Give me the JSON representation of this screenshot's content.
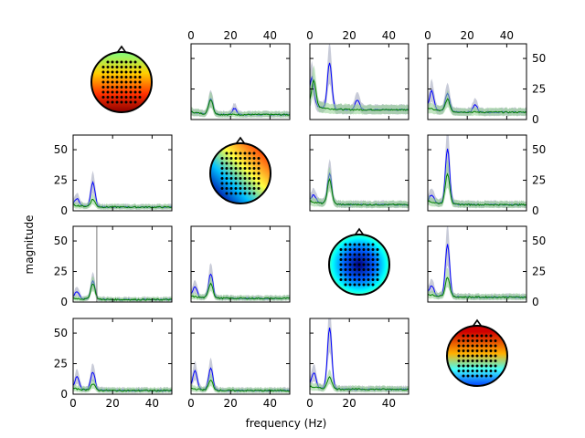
{
  "figure": {
    "xlabel": "frequency (Hz)",
    "ylabel": "magnitude"
  },
  "colors": {
    "series_a": "#0000ff",
    "series_b": "#008000",
    "band_a": "#9aa0b8",
    "band_b": "#8fd08f"
  },
  "chart_data": {
    "type": "line",
    "layout": "4x4 grid; diagonal cells show scalp topography maps with electrode dots; off-diagonal cells show spectral magnitude curves with shaded bands",
    "x_ticks": [
      0,
      20,
      40
    ],
    "x_ticks_top_row": [
      0,
      20,
      40
    ],
    "y_ticks_left": [
      0,
      25,
      50
    ],
    "y_ticks_right": [
      0,
      25,
      50
    ],
    "xlim": [
      0,
      50
    ],
    "ylim_left": [
      0,
      62
    ],
    "ylim_right": [
      0,
      62
    ],
    "topography_maps": [
      "row1",
      "row2",
      "row3",
      "row4"
    ],
    "series_names": [
      "",
      ""
    ],
    "panels": [
      {
        "row": 0,
        "col": 1,
        "peaks": [
          {
            "f": 10,
            "a": 13
          },
          {
            "f": 22,
            "a": 5
          }
        ],
        "base": 4,
        "extra": [
          {
            "f": 10,
            "a": 12
          }
        ]
      },
      {
        "row": 0,
        "col": 2,
        "peaks": [
          {
            "f": 1,
            "a": 22
          },
          {
            "f": 10,
            "a": 38
          },
          {
            "f": 24,
            "a": 8
          }
        ],
        "base": 8,
        "extra": [
          {
            "f": 2,
            "a": 20
          }
        ]
      },
      {
        "row": 0,
        "col": 3,
        "peaks": [
          {
            "f": 2,
            "a": 15
          },
          {
            "f": 10,
            "a": 15
          },
          {
            "f": 24,
            "a": 6
          }
        ],
        "base": 6,
        "extra": [
          {
            "f": 10,
            "a": 10
          }
        ]
      },
      {
        "row": 1,
        "col": 0,
        "peaks": [
          {
            "f": 10,
            "a": 20
          },
          {
            "f": 2,
            "a": 6
          }
        ],
        "base": 3,
        "extra": [
          {
            "f": 10,
            "a": 6
          }
        ]
      },
      {
        "row": 1,
        "col": 2,
        "peaks": [
          {
            "f": 10,
            "a": 25
          },
          {
            "f": 2,
            "a": 6
          }
        ],
        "base": 5,
        "extra": [
          {
            "f": 10,
            "a": 20
          }
        ]
      },
      {
        "row": 1,
        "col": 3,
        "peaks": [
          {
            "f": 10,
            "a": 45
          },
          {
            "f": 2,
            "a": 6
          }
        ],
        "base": 5,
        "extra": [
          {
            "f": 10,
            "a": 25
          }
        ]
      },
      {
        "row": 2,
        "col": 0,
        "peaks": [
          {
            "f": 10,
            "a": 15
          },
          {
            "f": 2,
            "a": 6
          }
        ],
        "base": 2,
        "extra": [
          {
            "f": 10,
            "a": 13
          }
        ],
        "vline": 12
      },
      {
        "row": 2,
        "col": 1,
        "peaks": [
          {
            "f": 10,
            "a": 20
          },
          {
            "f": 2,
            "a": 8
          }
        ],
        "base": 3,
        "extra": [
          {
            "f": 10,
            "a": 12
          }
        ]
      },
      {
        "row": 2,
        "col": 3,
        "peaks": [
          {
            "f": 10,
            "a": 43
          },
          {
            "f": 2,
            "a": 8
          }
        ],
        "base": 4,
        "extra": [
          {
            "f": 10,
            "a": 16
          }
        ]
      },
      {
        "row": 3,
        "col": 0,
        "peaks": [
          {
            "f": 10,
            "a": 15
          },
          {
            "f": 2,
            "a": 10
          }
        ],
        "base": 3,
        "extra": [
          {
            "f": 10,
            "a": 5
          }
        ]
      },
      {
        "row": 3,
        "col": 1,
        "peaks": [
          {
            "f": 10,
            "a": 18
          },
          {
            "f": 2,
            "a": 15
          }
        ],
        "base": 3,
        "extra": [
          {
            "f": 10,
            "a": 8
          }
        ]
      },
      {
        "row": 3,
        "col": 2,
        "peaks": [
          {
            "f": 10,
            "a": 50
          },
          {
            "f": 2,
            "a": 12
          }
        ],
        "base": 4,
        "extra": [
          {
            "f": 10,
            "a": 10
          }
        ]
      }
    ]
  }
}
